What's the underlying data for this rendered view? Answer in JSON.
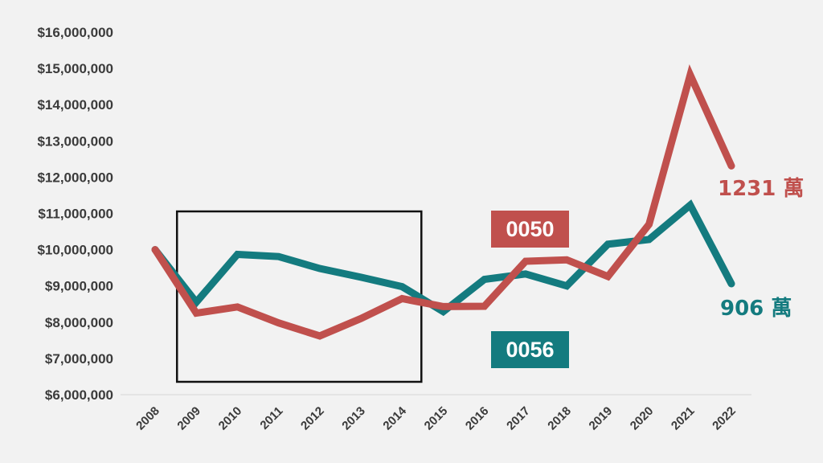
{
  "chart_data": {
    "type": "line",
    "x": [
      "2008",
      "2009",
      "2010",
      "2011",
      "2012",
      "2013",
      "2014",
      "2015",
      "2016",
      "2017",
      "2018",
      "2019",
      "2020",
      "2021",
      "2022"
    ],
    "ylim": [
      6000000,
      16000000
    ],
    "yticks": [
      6000000,
      7000000,
      8000000,
      9000000,
      10000000,
      11000000,
      12000000,
      13000000,
      14000000,
      15000000,
      16000000
    ],
    "ytick_labels": [
      "$6,000,000",
      "$7,000,000",
      "$8,000,000",
      "$9,000,000",
      "$10,000,000",
      "$11,000,000",
      "$12,000,000",
      "$13,000,000",
      "$14,000,000",
      "$15,000,000",
      "$16,000,000"
    ],
    "grid": false,
    "series": [
      {
        "name": "0050",
        "color": "#c0504d",
        "values": [
          10000000,
          8250000,
          8420000,
          7980000,
          7620000,
          8100000,
          8650000,
          8430000,
          8440000,
          9680000,
          9720000,
          9260000,
          10700000,
          14820000,
          12310000
        ],
        "end_label": "1231 萬"
      },
      {
        "name": "0056",
        "color": "#147b7f",
        "values": [
          10000000,
          8550000,
          9870000,
          9810000,
          9480000,
          9240000,
          8980000,
          8290000,
          9180000,
          9330000,
          9000000,
          10150000,
          10280000,
          11230000,
          9060000
        ],
        "end_label": "906 萬"
      }
    ],
    "highlight_box": {
      "x_start": "2009",
      "x_end": "2014"
    }
  }
}
